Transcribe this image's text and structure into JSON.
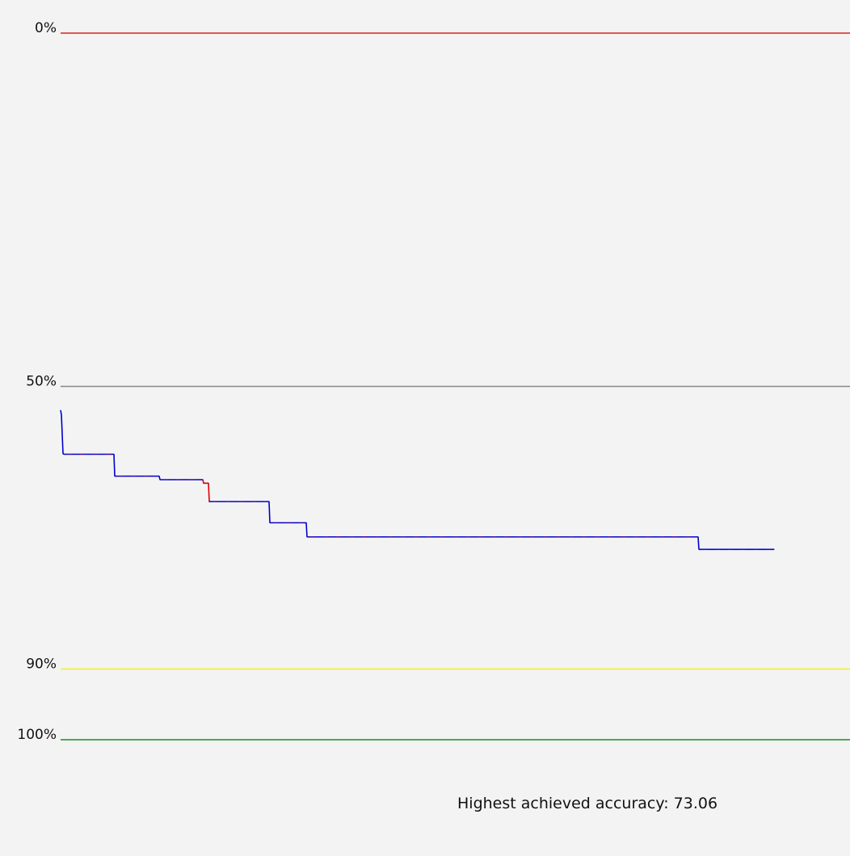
{
  "chart_data": {
    "type": "line",
    "y_axis": {
      "inverted": true,
      "range": [
        0,
        100
      ],
      "unit": "%"
    },
    "reference_lines": [
      {
        "label": "0%",
        "value": 0,
        "color": "#e02020"
      },
      {
        "label": "50%",
        "value": 50,
        "color": "#888888"
      },
      {
        "label": "90%",
        "value": 90,
        "color": "#f2f21a"
      },
      {
        "label": "100%",
        "value": 100,
        "color": "#1a8a1a"
      }
    ],
    "series": [
      {
        "color": "#0000d0",
        "highlight_color": "#e00000",
        "x": [
          0,
          1,
          3,
          4,
          66,
          67,
          122,
          123,
          176,
          177,
          183,
          184,
          258,
          259,
          304,
          305,
          789,
          790,
          883
        ],
        "y": [
          53.4,
          54.0,
          59.5,
          59.6,
          59.6,
          62.7,
          62.7,
          63.2,
          63.2,
          63.7,
          63.7,
          66.3,
          66.3,
          69.3,
          69.3,
          71.3,
          71.3,
          73.06,
          73.06
        ],
        "highlight_range": [
          176,
          184
        ]
      }
    ]
  },
  "caption": {
    "text": "Highest achieved accuracy: 73.06"
  }
}
